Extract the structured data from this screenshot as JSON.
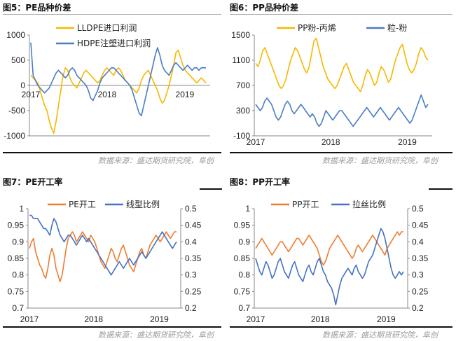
{
  "titles": {
    "fig5": "图5：PE品种价差",
    "fig6": "图6：PP品种价差",
    "fig7": "图7：PE开工率",
    "fig8": "图8：PP开工率"
  },
  "source_text": "数据来源：盛达期货研究院，阜创",
  "colors": {
    "orange": "#F5B800",
    "blue": "#4A7DC4",
    "orange2": "#EE7D2F",
    "blue2": "#4472C4"
  },
  "chart_data": [
    {
      "id": "fig5",
      "type": "line",
      "xticks": [
        "2017",
        "2018",
        "2019"
      ],
      "yticks": [
        "1000",
        "500",
        "0",
        "-500",
        "-1000"
      ],
      "ylim": [
        -1000,
        1000
      ],
      "series": [
        {
          "name": "LLDPE进口利润",
          "color": "#F5B800",
          "values": [
            200,
            150,
            100,
            50,
            -100,
            -250,
            -400,
            -500,
            -700,
            -850,
            -950,
            -700,
            -400,
            -100,
            200,
            350,
            300,
            150,
            50,
            0,
            -50,
            50,
            150,
            250,
            300,
            250,
            200,
            150,
            100,
            50,
            100,
            200,
            300,
            350,
            300,
            250,
            200,
            300,
            350,
            300,
            200,
            100,
            50,
            0,
            -50,
            -100,
            -150,
            -50,
            100,
            200,
            250,
            300,
            200,
            100,
            0,
            -100,
            -250,
            -350,
            -300,
            -150,
            0,
            200,
            400,
            650,
            700,
            550,
            400,
            300,
            250,
            200,
            150,
            100,
            50,
            100,
            150,
            100,
            50
          ]
        },
        {
          "name": "HDPE注塑进口利润",
          "color": "#4A7DC4",
          "values": [
            850,
            200,
            100,
            0,
            -50,
            -100,
            -150,
            -100,
            -50,
            50,
            150,
            250,
            300,
            250,
            200,
            150,
            200,
            300,
            350,
            300,
            200,
            150,
            100,
            50,
            0,
            -100,
            -250,
            -300,
            -200,
            -100,
            50,
            150,
            200,
            250,
            300,
            350,
            350,
            300,
            250,
            200,
            150,
            100,
            50,
            0,
            -100,
            -250,
            -400,
            -550,
            -600,
            -400,
            -200,
            0,
            200,
            400,
            600,
            750,
            600,
            400,
            300,
            250,
            200,
            300,
            400,
            450,
            400,
            350,
            300,
            350,
            400,
            350,
            300,
            350,
            350,
            300,
            350,
            350,
            350
          ]
        }
      ]
    },
    {
      "id": "fig6",
      "type": "line",
      "xticks": [
        "2017",
        "2018",
        "2019"
      ],
      "yticks": [
        "1500",
        "1100",
        "700",
        "300",
        "-100"
      ],
      "ylim": [
        -100,
        1500
      ],
      "series": [
        {
          "name": "PP粉-丙烯",
          "color": "#F5B800",
          "values": [
            1050,
            1000,
            1100,
            1250,
            1300,
            1200,
            1100,
            1000,
            900,
            800,
            700,
            650,
            700,
            800,
            950,
            1100,
            1200,
            1300,
            1250,
            1150,
            1050,
            950,
            900,
            1000,
            1200,
            1400,
            1450,
            1300,
            1150,
            1000,
            900,
            800,
            750,
            700,
            650,
            700,
            800,
            900,
            1000,
            1050,
            950,
            850,
            750,
            700,
            650,
            600,
            700,
            850,
            950,
            900,
            800,
            700,
            750,
            900,
            1000,
            950,
            850,
            750,
            800,
            950,
            1100,
            1200,
            1300,
            1350,
            1200,
            1050,
            950,
            900,
            950,
            1050,
            1200,
            1300,
            1250,
            1150,
            1100
          ]
        },
        {
          "name": "粒-粉",
          "color": "#4A7DC4",
          "values": [
            400,
            350,
            300,
            350,
            450,
            500,
            450,
            400,
            300,
            200,
            150,
            200,
            300,
            400,
            450,
            400,
            300,
            250,
            300,
            350,
            400,
            350,
            300,
            250,
            200,
            250,
            200,
            100,
            50,
            100,
            200,
            300,
            250,
            200,
            150,
            200,
            250,
            300,
            300,
            250,
            200,
            150,
            100,
            50,
            100,
            150,
            200,
            250,
            300,
            350,
            300,
            250,
            200,
            250,
            300,
            350,
            300,
            250,
            200,
            150,
            200,
            250,
            300,
            350,
            300,
            250,
            200,
            150,
            100,
            150,
            250,
            350,
            450,
            550,
            450,
            350,
            400
          ]
        }
      ]
    },
    {
      "id": "fig7",
      "type": "line",
      "xticks": [
        "2017",
        "2018",
        "2019"
      ],
      "yticks_left": [
        "1",
        "0.95",
        "0.9",
        "0.85",
        "0.8",
        "0.75",
        "0.7"
      ],
      "yticks_right": [
        "0.5",
        "0.45",
        "0.4",
        "0.35",
        "0.3",
        "0.25",
        "0.2"
      ],
      "ylim_left": [
        0.7,
        1.0
      ],
      "ylim_right": [
        0.2,
        0.5
      ],
      "series": [
        {
          "name": "PE开工",
          "axis": "left",
          "color": "#EE7D2F",
          "values": [
            0.88,
            0.9,
            0.91,
            0.87,
            0.85,
            0.83,
            0.82,
            0.8,
            0.79,
            0.82,
            0.86,
            0.88,
            0.86,
            0.82,
            0.8,
            0.78,
            0.8,
            0.84,
            0.88,
            0.91,
            0.92,
            0.93,
            0.92,
            0.9,
            0.91,
            0.92,
            0.93,
            0.92,
            0.91,
            0.9,
            0.92,
            0.91,
            0.9,
            0.88,
            0.86,
            0.84,
            0.83,
            0.82,
            0.84,
            0.86,
            0.88,
            0.87,
            0.85,
            0.84,
            0.86,
            0.88,
            0.89,
            0.87,
            0.85,
            0.83,
            0.82,
            0.81,
            0.83,
            0.85,
            0.87,
            0.88,
            0.86,
            0.85,
            0.87,
            0.89,
            0.9,
            0.91,
            0.92,
            0.91,
            0.9,
            0.91,
            0.92,
            0.93,
            0.92,
            0.91,
            0.92,
            0.93,
            0.93
          ]
        },
        {
          "name": "线型比例",
          "axis": "right",
          "color": "#4472C4",
          "values": [
            0.48,
            0.48,
            0.47,
            0.47,
            0.47,
            0.46,
            0.45,
            0.44,
            0.44,
            0.43,
            0.42,
            0.45,
            0.47,
            0.46,
            0.44,
            0.42,
            0.41,
            0.4,
            0.41,
            0.42,
            0.42,
            0.41,
            0.4,
            0.39,
            0.4,
            0.41,
            0.42,
            0.41,
            0.4,
            0.41,
            0.4,
            0.39,
            0.38,
            0.37,
            0.36,
            0.35,
            0.34,
            0.33,
            0.32,
            0.31,
            0.3,
            0.31,
            0.32,
            0.33,
            0.34,
            0.33,
            0.32,
            0.33,
            0.34,
            0.35,
            0.34,
            0.33,
            0.34,
            0.35,
            0.36,
            0.37,
            0.36,
            0.35,
            0.36,
            0.37,
            0.38,
            0.39,
            0.4,
            0.41,
            0.42,
            0.43,
            0.42,
            0.41,
            0.4,
            0.39,
            0.38,
            0.39,
            0.4
          ]
        }
      ]
    },
    {
      "id": "fig8",
      "type": "line",
      "xticks": [
        "2017",
        "2018",
        "2019"
      ],
      "yticks_left": [
        "1",
        "0.95",
        "0.9",
        "0.85",
        "0.8",
        "0.75",
        "0.7"
      ],
      "yticks_right": [
        "0.5",
        "0.45",
        "0.4",
        "0.35",
        "0.3",
        "0.25",
        "0.2"
      ],
      "ylim_left": [
        0.7,
        1.0
      ],
      "ylim_right": [
        0.2,
        0.5
      ],
      "series": [
        {
          "name": "PP开工",
          "axis": "left",
          "color": "#EE7D2F",
          "values": [
            0.88,
            0.89,
            0.9,
            0.91,
            0.9,
            0.89,
            0.88,
            0.87,
            0.86,
            0.87,
            0.88,
            0.89,
            0.9,
            0.9,
            0.89,
            0.88,
            0.87,
            0.88,
            0.89,
            0.9,
            0.91,
            0.91,
            0.9,
            0.89,
            0.9,
            0.91,
            0.92,
            0.91,
            0.9,
            0.89,
            0.88,
            0.86,
            0.84,
            0.83,
            0.84,
            0.86,
            0.88,
            0.89,
            0.9,
            0.91,
            0.92,
            0.91,
            0.9,
            0.89,
            0.88,
            0.87,
            0.86,
            0.85,
            0.86,
            0.88,
            0.89,
            0.88,
            0.87,
            0.88,
            0.89,
            0.9,
            0.91,
            0.92,
            0.91,
            0.9,
            0.89,
            0.88,
            0.87,
            0.86,
            0.88,
            0.89,
            0.9,
            0.91,
            0.92,
            0.93,
            0.92,
            0.93,
            0.93
          ]
        },
        {
          "name": "拉丝比例",
          "axis": "right",
          "color": "#4472C4",
          "values": [
            0.35,
            0.33,
            0.31,
            0.3,
            0.32,
            0.34,
            0.33,
            0.31,
            0.29,
            0.3,
            0.32,
            0.34,
            0.35,
            0.33,
            0.31,
            0.3,
            0.29,
            0.31,
            0.33,
            0.34,
            0.32,
            0.3,
            0.29,
            0.28,
            0.3,
            0.32,
            0.33,
            0.31,
            0.3,
            0.32,
            0.34,
            0.35,
            0.33,
            0.31,
            0.3,
            0.28,
            0.27,
            0.26,
            0.24,
            0.21,
            0.24,
            0.27,
            0.29,
            0.3,
            0.31,
            0.32,
            0.31,
            0.3,
            0.32,
            0.33,
            0.31,
            0.3,
            0.29,
            0.3,
            0.32,
            0.34,
            0.35,
            0.36,
            0.38,
            0.4,
            0.42,
            0.44,
            0.43,
            0.41,
            0.38,
            0.35,
            0.32,
            0.3,
            0.29,
            0.3,
            0.31,
            0.3,
            0.31
          ]
        }
      ]
    }
  ]
}
